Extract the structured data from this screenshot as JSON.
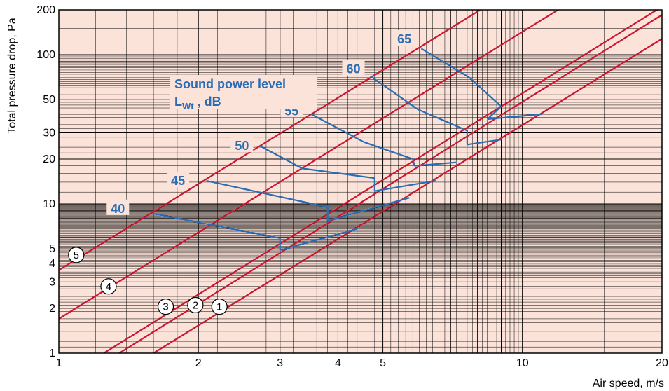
{
  "chart_data": {
    "type": "line",
    "xlabel": "Air speed, m/s",
    "ylabel": "Total pressure drop, Pa",
    "xscale": "log",
    "yscale": "log",
    "xlim": [
      1,
      20
    ],
    "ylim": [
      1,
      200
    ],
    "xticks": [
      {
        "value": 1,
        "label": "1"
      },
      {
        "value": 2,
        "label": "2"
      },
      {
        "value": 3,
        "label": "3"
      },
      {
        "value": 4,
        "label": "4"
      },
      {
        "value": 5,
        "label": "5"
      },
      {
        "value": 10,
        "label": "10"
      },
      {
        "value": 20,
        "label": "20"
      }
    ],
    "yticks": [
      {
        "value": 1,
        "label": "1"
      },
      {
        "value": 2,
        "label": "2"
      },
      {
        "value": 3,
        "label": "3"
      },
      {
        "value": 4,
        "label": "4"
      },
      {
        "value": 5,
        "label": "5"
      },
      {
        "value": 10,
        "label": "10"
      },
      {
        "value": 20,
        "label": "20"
      },
      {
        "value": 30,
        "label": "30"
      },
      {
        "value": 50,
        "label": "50"
      },
      {
        "value": 100,
        "label": "100"
      },
      {
        "value": 200,
        "label": "200"
      }
    ],
    "grid": true,
    "colors": {
      "background": "#fbe3da",
      "grid": "#000000",
      "curve": "#cc1530",
      "level": "#2a6db5"
    },
    "series": [
      {
        "name": "1",
        "x": [
          1.6,
          20
        ],
        "y": [
          1,
          128
        ],
        "label_at": [
          2.22,
          2.05
        ]
      },
      {
        "name": "2",
        "x": [
          1.35,
          20
        ],
        "y": [
          1,
          185
        ],
        "label_at": [
          1.97,
          2.1
        ]
      },
      {
        "name": "3",
        "x": [
          1.25,
          20
        ],
        "y": [
          1,
          210
        ],
        "label_at": [
          1.7,
          2.05
        ]
      },
      {
        "name": "4",
        "x": [
          1,
          20
        ],
        "y": [
          1.7,
          540
        ],
        "label_at": [
          1.28,
          2.8
        ]
      },
      {
        "name": "5",
        "x": [
          1,
          20
        ],
        "y": [
          3.6,
          1130
        ],
        "label_at": [
          1.09,
          4.55
        ]
      }
    ],
    "sound_levels_title": "Sound power level",
    "sound_levels_unit_main": "L",
    "sound_levels_unit_sub": "Wt",
    "sound_levels_unit_rest": " , dB",
    "sound_levels": [
      {
        "label": "40",
        "label_at": [
          1.35,
          9.3
        ],
        "points": [
          [
            1.6,
            8.6
          ],
          [
            3.0,
            5.9
          ],
          [
            3.0,
            4.9
          ],
          [
            4.4,
            6.8
          ]
        ],
        "branch": [
          [
            3.8,
            7.7
          ],
          [
            5.7,
            11
          ]
        ]
      },
      {
        "label": "45",
        "label_at": [
          1.82,
          14.3
        ],
        "points": [
          [
            2.08,
            14.3
          ],
          [
            3.7,
            9.7
          ],
          [
            3.8,
            9.7
          ],
          [
            3.8,
            7.7
          ]
        ],
        "branch": [
          [
            4.8,
            12.2
          ],
          [
            6.5,
            14.3
          ]
        ]
      },
      {
        "label": "50",
        "label_at": [
          2.5,
          24.5
        ],
        "points": [
          [
            2.72,
            24.4
          ],
          [
            3.35,
            17.3
          ],
          [
            4.8,
            14.9
          ],
          [
            4.8,
            12.2
          ]
        ],
        "branch": [
          [
            5.85,
            18
          ],
          [
            7.2,
            19
          ]
        ]
      },
      {
        "label": "55",
        "label_at": [
          3.2,
          42
        ],
        "points": [
          [
            3.5,
            40
          ],
          [
            4.55,
            26
          ],
          [
            5.8,
            20
          ],
          [
            5.85,
            18
          ]
        ],
        "branch": [
          [
            7.6,
            25
          ],
          [
            9.0,
            27
          ]
        ]
      },
      {
        "label": "60",
        "label_at": [
          4.35,
          80
        ],
        "points": [
          [
            4.7,
            72
          ],
          [
            5.95,
            43
          ],
          [
            7.6,
            31
          ],
          [
            7.6,
            25
          ]
        ],
        "branch": [
          [
            8.4,
            37
          ],
          [
            11,
            40
          ]
        ]
      },
      {
        "label": "65",
        "label_at": [
          5.6,
          127
        ],
        "points": [
          [
            6.05,
            110
          ],
          [
            7.7,
            70
          ],
          [
            9.0,
            45
          ],
          [
            8.4,
            37
          ]
        ],
        "branch": []
      }
    ]
  }
}
